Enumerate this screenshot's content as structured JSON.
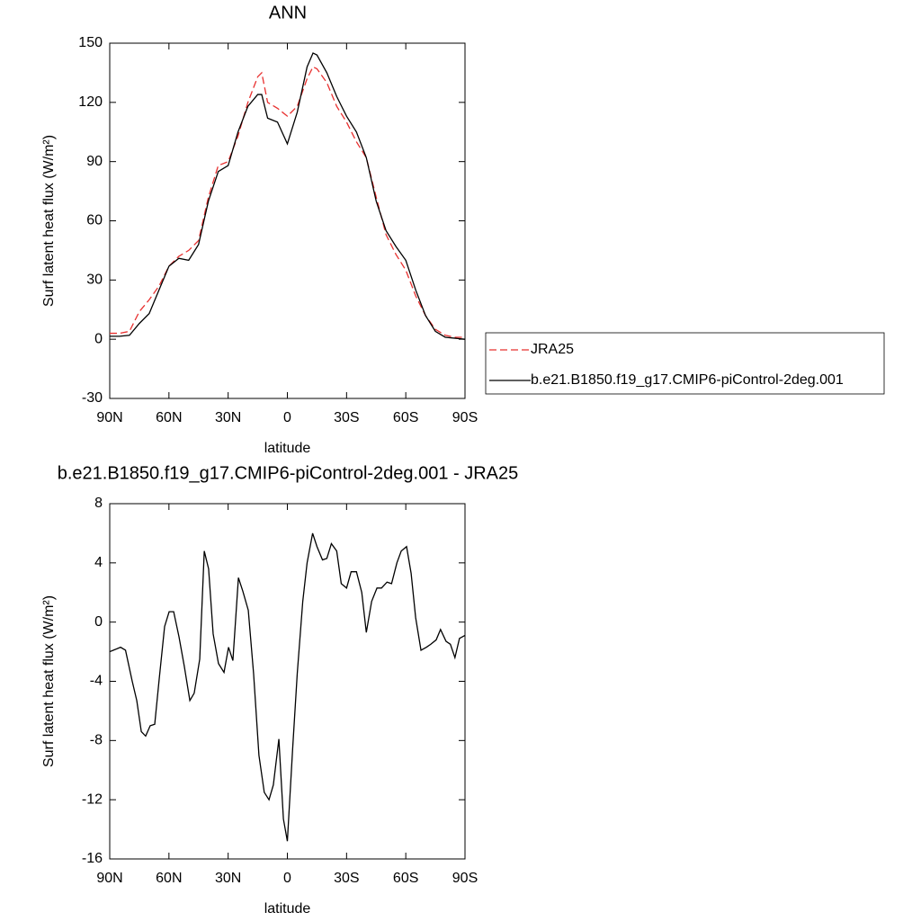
{
  "chart_data": [
    {
      "type": "line",
      "title": "ANN",
      "xlabel": "latitude",
      "ylabel": "Surf latent heat flux (W/m²)",
      "x": [
        90,
        85,
        80,
        75,
        70,
        65,
        60,
        55,
        50,
        45,
        40,
        35,
        30,
        25,
        20,
        15,
        13,
        10,
        5,
        0,
        -5,
        -10,
        -13,
        -15,
        -20,
        -25,
        -30,
        -35,
        -40,
        -45,
        -50,
        -55,
        -60,
        -65,
        -70,
        -75,
        -80,
        -85,
        -90
      ],
      "series": [
        {
          "name": "JRA25",
          "color": "#e8302f",
          "dashed": true,
          "values": [
            3,
            3,
            4,
            14,
            20,
            27,
            37,
            42,
            45,
            50,
            72,
            88,
            90,
            103,
            120,
            133,
            135,
            120,
            117,
            113,
            118,
            132,
            138,
            137,
            130,
            118,
            110,
            100,
            92,
            72,
            53,
            43,
            35,
            22,
            12,
            5,
            2,
            1,
            1
          ]
        },
        {
          "name": "b.e21.B1850.f19_g17.CMIP6-piControl-2deg.001",
          "color": "#000000",
          "dashed": false,
          "values": [
            1.5,
            1.5,
            2,
            8,
            13,
            25,
            37,
            41,
            40,
            48,
            70,
            85,
            88,
            105,
            118,
            124,
            124,
            112,
            110,
            99,
            115,
            138,
            145,
            144,
            135,
            123,
            113,
            105,
            92,
            70,
            55,
            47,
            40,
            25,
            12,
            4,
            1,
            0.5,
            0
          ]
        }
      ],
      "xlim": [
        90,
        -90
      ],
      "xticks": [
        {
          "value": 90,
          "label": "90N"
        },
        {
          "value": 60,
          "label": "60N"
        },
        {
          "value": 30,
          "label": "30N"
        },
        0,
        {
          "value": -30,
          "label": "30S"
        },
        {
          "value": -60,
          "label": "60S"
        },
        {
          "value": -90,
          "label": "90S"
        }
      ],
      "ylim": [
        -30,
        150
      ],
      "yticks": [
        -30,
        0,
        30,
        60,
        90,
        120,
        150
      ],
      "legend": "right"
    },
    {
      "type": "line",
      "title": "b.e21.B1850.f19_g17.CMIP6-piControl-2deg.001 - JRA25",
      "xlabel": "latitude",
      "ylabel": "Surf latent heat flux (W/m²)",
      "x": [
        90,
        84.5,
        82,
        78.6,
        76.3,
        74,
        71.8,
        69.5,
        67.2,
        64.9,
        62.2,
        59.9,
        57.6,
        54.9,
        52.2,
        49.4,
        47.2,
        44.4,
        42.1,
        39.9,
        37.6,
        34.9,
        32.1,
        29.8,
        27.6,
        24.8,
        22.6,
        19.8,
        17.1,
        14.4,
        11.7,
        9.3,
        7.1,
        4.3,
        2,
        0,
        -2.7,
        -5,
        -7.8,
        -10,
        -12.8,
        -15,
        -17.8,
        -20,
        -22.3,
        -25,
        -27.3,
        -30,
        -32.3,
        -35,
        -37.7,
        -40,
        -42.7,
        -45.4,
        -47.7,
        -50.5,
        -52.8,
        -55.5,
        -57.7,
        -60.4,
        -62.7,
        -65,
        -67.7,
        -70.4,
        -72.6,
        -75.4,
        -77.6,
        -80.4,
        -82.6,
        -84.9,
        -87.2,
        -90
      ],
      "series": [
        {
          "color": "#000000",
          "dashed": false,
          "values": [
            -2,
            -1.7,
            -1.9,
            -4,
            -5.3,
            -7.4,
            -7.7,
            -7,
            -6.9,
            -3.8,
            -0.3,
            0.7,
            0.7,
            -1,
            -3,
            -5.3,
            -4.8,
            -2.5,
            4.8,
            3.6,
            -0.8,
            -2.8,
            -3.4,
            -1.7,
            -2.6,
            3,
            2.1,
            0.8,
            -3.5,
            -9,
            -11.5,
            -12,
            -11,
            -7.9,
            -13.3,
            -14.8,
            -8.5,
            -3.5,
            1.4,
            4,
            6,
            5.1,
            4.2,
            4.3,
            5.3,
            4.8,
            2.6,
            2.3,
            3.4,
            3.4,
            2,
            -0.7,
            1.4,
            2.3,
            2.3,
            2.7,
            2.6,
            4,
            4.8,
            5.1,
            3.3,
            0.3,
            -1.9,
            -1.7,
            -1.5,
            -1.2,
            -0.5,
            -1.3,
            -1.5,
            -2.4,
            -1.1,
            -0.9
          ]
        }
      ],
      "xlim": [
        90,
        -90
      ],
      "xticks": [
        {
          "value": 90,
          "label": "90N"
        },
        {
          "value": 60,
          "label": "60N"
        },
        {
          "value": 30,
          "label": "30N"
        },
        0,
        {
          "value": -30,
          "label": "30S"
        },
        {
          "value": -60,
          "label": "60S"
        },
        {
          "value": -90,
          "label": "90S"
        }
      ],
      "ylim": [
        -16,
        8
      ],
      "yticks": [
        -16,
        -12,
        -8,
        -4,
        0,
        4,
        8
      ]
    }
  ]
}
